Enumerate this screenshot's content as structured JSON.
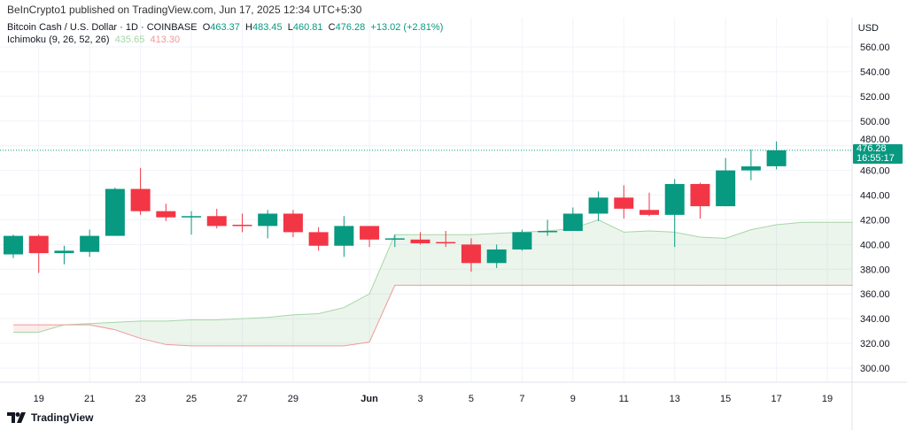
{
  "publisher": "BeInCrypto1 published on TradingView.com, Jun 17, 2025 12:34 UTC+5:30",
  "legend": {
    "symbol": "Bitcoin Cash / U.S. Dollar · 1D · COINBASE",
    "o_label": "O",
    "o": "463.37",
    "h_label": "H",
    "h": "483.45",
    "l_label": "L",
    "l": "460.81",
    "c_label": "C",
    "c": "476.28",
    "change": "+13.02 (+2.81%)",
    "indicator": "Ichimoku (9, 26, 52, 26)",
    "span_a_value": "435.65",
    "span_b_value": "413.30"
  },
  "currency": "USD",
  "price_tag": {
    "price": "476.28",
    "countdown": "16:55:17"
  },
  "footer": {
    "brand": "TradingView"
  },
  "colors": {
    "up": "#089981",
    "down": "#f23645",
    "span_a": "#a5d6a7",
    "span_b": "#ef9a9a",
    "cloud_up": "#43a047",
    "cloud_down": "#f44336"
  },
  "chart_data": {
    "type": "candlestick",
    "ylim": [
      290,
      570
    ],
    "grid": true,
    "y_ticks": [
      "300.00",
      "320.00",
      "340.00",
      "360.00",
      "380.00",
      "400.00",
      "420.00",
      "440.00",
      "460.00",
      "480.00",
      "500.00",
      "520.00",
      "540.00",
      "560.00"
    ],
    "x_ticks": [
      {
        "day": 1,
        "label": "19"
      },
      {
        "day": 3,
        "label": "21"
      },
      {
        "day": 5,
        "label": "23"
      },
      {
        "day": 7,
        "label": "25"
      },
      {
        "day": 9,
        "label": "27"
      },
      {
        "day": 11,
        "label": "29"
      },
      {
        "day": 14,
        "label": "Jun"
      },
      {
        "day": 16,
        "label": "3"
      },
      {
        "day": 18,
        "label": "5"
      },
      {
        "day": 20,
        "label": "7"
      },
      {
        "day": 22,
        "label": "9"
      },
      {
        "day": 24,
        "label": "11"
      },
      {
        "day": 26,
        "label": "13"
      },
      {
        "day": 28,
        "label": "15"
      },
      {
        "day": 30,
        "label": "17"
      },
      {
        "day": 32,
        "label": "19"
      }
    ],
    "dates": [
      "May 18",
      "May 19",
      "May 20",
      "May 21",
      "May 22",
      "May 23",
      "May 24",
      "May 25",
      "May 26",
      "May 27",
      "May 28",
      "May 29",
      "May 30",
      "May 31",
      "Jun 1",
      "Jun 2",
      "Jun 3",
      "Jun 4",
      "Jun 5",
      "Jun 6",
      "Jun 7",
      "Jun 8",
      "Jun 9",
      "Jun 10",
      "Jun 11",
      "Jun 12",
      "Jun 13",
      "Jun 14",
      "Jun 15",
      "Jun 16",
      "Jun 17"
    ],
    "ohlc": [
      [
        392,
        408,
        389,
        407
      ],
      [
        407,
        408,
        377,
        393
      ],
      [
        393,
        399,
        384,
        395
      ],
      [
        394,
        412,
        390,
        407
      ],
      [
        407,
        446,
        407,
        445
      ],
      [
        445,
        462,
        424,
        427
      ],
      [
        427,
        433,
        419,
        422
      ],
      [
        422,
        427,
        408,
        423
      ],
      [
        423,
        429,
        413,
        415
      ],
      [
        416,
        425,
        410,
        415
      ],
      [
        415,
        428,
        405,
        425
      ],
      [
        425,
        428,
        406,
        410
      ],
      [
        410,
        414,
        395,
        399
      ],
      [
        399,
        423,
        390,
        415
      ],
      [
        415,
        415,
        398,
        404
      ],
      [
        404,
        408,
        398,
        405
      ],
      [
        404,
        410,
        400,
        401
      ],
      [
        402,
        411,
        398,
        401
      ],
      [
        400,
        405,
        378,
        385
      ],
      [
        385,
        400,
        381,
        396
      ],
      [
        396,
        412,
        395,
        410
      ],
      [
        410,
        420,
        407,
        411
      ],
      [
        411,
        430,
        411,
        425
      ],
      [
        425,
        443,
        419,
        438
      ],
      [
        438,
        448,
        421,
        429
      ],
      [
        428,
        442,
        423,
        424
      ],
      [
        424,
        453,
        398,
        449
      ],
      [
        449,
        450,
        421,
        431
      ],
      [
        431,
        470,
        431,
        460
      ],
      [
        460,
        477,
        452,
        463.26
      ],
      [
        463.37,
        483.45,
        460.81,
        476.28
      ]
    ],
    "span_a": [
      329,
      329,
      335,
      336,
      337,
      338,
      338,
      339,
      339,
      340,
      341,
      343,
      344,
      349,
      360,
      408,
      408,
      408,
      408,
      409,
      410,
      411,
      413,
      420,
      410,
      411,
      410,
      406,
      405,
      412,
      416,
      418,
      418,
      418
    ],
    "span_b": [
      335,
      335,
      335,
      335,
      331,
      324,
      319,
      318,
      318,
      318,
      318,
      318,
      318,
      318,
      321,
      367,
      367,
      367,
      367,
      367,
      367,
      367,
      367,
      367,
      367,
      367,
      367,
      367,
      367,
      367,
      367,
      367,
      367,
      367
    ],
    "last_price": 476.28
  }
}
